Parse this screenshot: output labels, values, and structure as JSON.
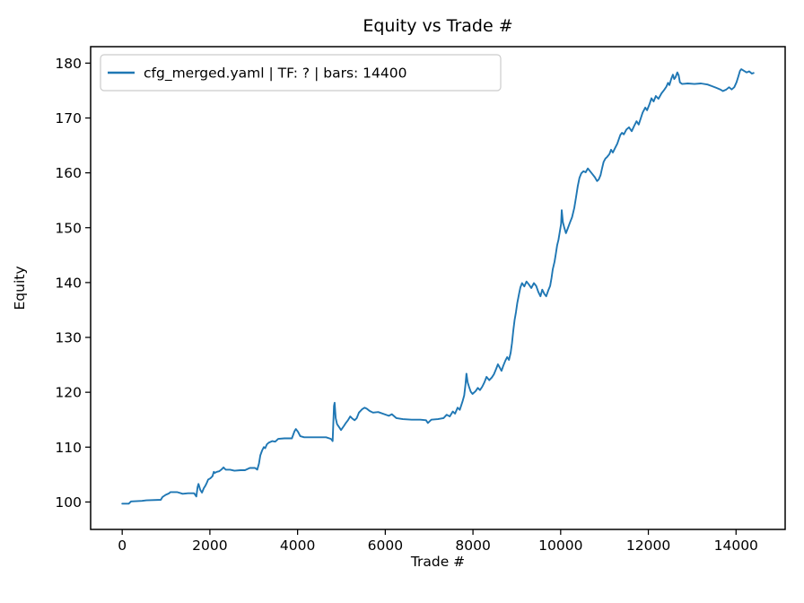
{
  "colors": {
    "line": "#1f77b4",
    "spine": "#000000",
    "legend_border": "#cccccc",
    "background": "#ffffff"
  },
  "chart_data": {
    "type": "line",
    "title": "Equity vs Trade #",
    "xlabel": "Trade #",
    "ylabel": "Equity",
    "grid": false,
    "legend": {
      "position": "upper left",
      "entries": [
        {
          "label": "cfg_merged.yaml | TF: ? | bars: 14400",
          "color": "#1f77b4"
        }
      ]
    },
    "xlim": [
      -720,
      15120
    ],
    "ylim": [
      95,
      183
    ],
    "x_ticks": [
      "0",
      "2000",
      "4000",
      "6000",
      "8000",
      "10000",
      "12000",
      "14000"
    ],
    "x_tick_values": [
      0,
      2000,
      4000,
      6000,
      8000,
      10000,
      12000,
      14000
    ],
    "y_ticks": [
      "100",
      "110",
      "120",
      "130",
      "140",
      "150",
      "160",
      "170",
      "180"
    ],
    "y_tick_values": [
      100,
      110,
      120,
      130,
      140,
      150,
      160,
      170,
      180
    ],
    "series": [
      {
        "name": "cfg_merged.yaml | TF: ? | bars: 14400",
        "color": "#1f77b4",
        "points": [
          [
            0,
            99.7
          ],
          [
            150,
            99.7
          ],
          [
            200,
            100.1
          ],
          [
            450,
            100.2
          ],
          [
            550,
            100.3
          ],
          [
            880,
            100.4
          ],
          [
            920,
            100.9
          ],
          [
            990,
            101.3
          ],
          [
            1070,
            101.6
          ],
          [
            1100,
            101.8
          ],
          [
            1250,
            101.8
          ],
          [
            1380,
            101.5
          ],
          [
            1500,
            101.6
          ],
          [
            1640,
            101.6
          ],
          [
            1690,
            101.0
          ],
          [
            1720,
            102.7
          ],
          [
            1740,
            103.3
          ],
          [
            1780,
            102.2
          ],
          [
            1820,
            101.7
          ],
          [
            1860,
            102.5
          ],
          [
            1900,
            103.0
          ],
          [
            1930,
            103.5
          ],
          [
            1960,
            104.1
          ],
          [
            2010,
            104.3
          ],
          [
            2060,
            104.7
          ],
          [
            2090,
            105.5
          ],
          [
            2110,
            105.3
          ],
          [
            2160,
            105.5
          ],
          [
            2210,
            105.6
          ],
          [
            2260,
            105.9
          ],
          [
            2310,
            106.3
          ],
          [
            2360,
            105.9
          ],
          [
            2460,
            105.9
          ],
          [
            2560,
            105.7
          ],
          [
            2700,
            105.8
          ],
          [
            2800,
            105.8
          ],
          [
            2910,
            106.2
          ],
          [
            3030,
            106.2
          ],
          [
            3080,
            105.9
          ],
          [
            3120,
            107.0
          ],
          [
            3150,
            108.5
          ],
          [
            3190,
            109.4
          ],
          [
            3230,
            110.0
          ],
          [
            3260,
            109.8
          ],
          [
            3300,
            110.5
          ],
          [
            3340,
            110.8
          ],
          [
            3420,
            111.1
          ],
          [
            3490,
            111.0
          ],
          [
            3560,
            111.5
          ],
          [
            3700,
            111.6
          ],
          [
            3870,
            111.6
          ],
          [
            3930,
            112.9
          ],
          [
            3960,
            113.3
          ],
          [
            4010,
            112.8
          ],
          [
            4060,
            112.0
          ],
          [
            4150,
            111.8
          ],
          [
            4400,
            111.8
          ],
          [
            4650,
            111.8
          ],
          [
            4760,
            111.5
          ],
          [
            4800,
            111.1
          ],
          [
            4830,
            117.5
          ],
          [
            4845,
            118.1
          ],
          [
            4870,
            115.3
          ],
          [
            4900,
            114.2
          ],
          [
            4950,
            113.6
          ],
          [
            4990,
            113.1
          ],
          [
            5060,
            113.9
          ],
          [
            5100,
            114.4
          ],
          [
            5150,
            114.9
          ],
          [
            5200,
            115.6
          ],
          [
            5250,
            115.2
          ],
          [
            5300,
            114.9
          ],
          [
            5350,
            115.3
          ],
          [
            5400,
            116.3
          ],
          [
            5470,
            116.9
          ],
          [
            5530,
            117.2
          ],
          [
            5580,
            117.0
          ],
          [
            5640,
            116.6
          ],
          [
            5720,
            116.3
          ],
          [
            5840,
            116.4
          ],
          [
            5980,
            116.0
          ],
          [
            6080,
            115.7
          ],
          [
            6150,
            116.0
          ],
          [
            6250,
            115.3
          ],
          [
            6400,
            115.1
          ],
          [
            6600,
            115.0
          ],
          [
            6800,
            115.0
          ],
          [
            6930,
            114.9
          ],
          [
            6970,
            114.4
          ],
          [
            7050,
            115.0
          ],
          [
            7200,
            115.1
          ],
          [
            7330,
            115.3
          ],
          [
            7400,
            115.9
          ],
          [
            7470,
            115.6
          ],
          [
            7540,
            116.5
          ],
          [
            7590,
            116.1
          ],
          [
            7650,
            117.2
          ],
          [
            7700,
            116.8
          ],
          [
            7760,
            118.3
          ],
          [
            7800,
            119.4
          ],
          [
            7830,
            121.5
          ],
          [
            7850,
            123.4
          ],
          [
            7880,
            121.8
          ],
          [
            7910,
            121.0
          ],
          [
            7950,
            120.1
          ],
          [
            7990,
            119.7
          ],
          [
            8060,
            120.2
          ],
          [
            8110,
            120.8
          ],
          [
            8160,
            120.4
          ],
          [
            8210,
            121.0
          ],
          [
            8260,
            121.8
          ],
          [
            8310,
            122.8
          ],
          [
            8370,
            122.2
          ],
          [
            8430,
            122.7
          ],
          [
            8480,
            123.3
          ],
          [
            8530,
            124.3
          ],
          [
            8570,
            125.1
          ],
          [
            8610,
            124.5
          ],
          [
            8650,
            123.9
          ],
          [
            8690,
            124.8
          ],
          [
            8740,
            125.8
          ],
          [
            8780,
            126.4
          ],
          [
            8820,
            125.9
          ],
          [
            8860,
            127.2
          ],
          [
            8890,
            129.0
          ],
          [
            8920,
            131.2
          ],
          [
            8950,
            133.2
          ],
          [
            8980,
            134.6
          ],
          [
            9010,
            136.2
          ],
          [
            9050,
            137.9
          ],
          [
            9080,
            139.1
          ],
          [
            9120,
            139.9
          ],
          [
            9170,
            139.3
          ],
          [
            9220,
            140.2
          ],
          [
            9280,
            139.6
          ],
          [
            9330,
            139.0
          ],
          [
            9390,
            139.9
          ],
          [
            9440,
            139.4
          ],
          [
            9490,
            138.3
          ],
          [
            9540,
            137.5
          ],
          [
            9580,
            138.7
          ],
          [
            9630,
            137.9
          ],
          [
            9670,
            137.5
          ],
          [
            9720,
            138.6
          ],
          [
            9760,
            139.4
          ],
          [
            9790,
            140.8
          ],
          [
            9820,
            142.4
          ],
          [
            9860,
            143.8
          ],
          [
            9890,
            145.2
          ],
          [
            9920,
            146.8
          ],
          [
            9950,
            147.8
          ],
          [
            9980,
            149.2
          ],
          [
            10010,
            150.7
          ],
          [
            10025,
            153.2
          ],
          [
            10050,
            151.0
          ],
          [
            10080,
            150.1
          ],
          [
            10120,
            149.0
          ],
          [
            10160,
            149.8
          ],
          [
            10210,
            150.9
          ],
          [
            10260,
            151.9
          ],
          [
            10310,
            153.6
          ],
          [
            10350,
            155.5
          ],
          [
            10390,
            157.6
          ],
          [
            10430,
            159.1
          ],
          [
            10470,
            159.9
          ],
          [
            10520,
            160.3
          ],
          [
            10570,
            160.1
          ],
          [
            10620,
            160.8
          ],
          [
            10670,
            160.3
          ],
          [
            10720,
            159.8
          ],
          [
            10780,
            159.2
          ],
          [
            10830,
            158.5
          ],
          [
            10870,
            158.8
          ],
          [
            10910,
            159.6
          ],
          [
            10940,
            160.7
          ],
          [
            10980,
            162.0
          ],
          [
            11020,
            162.6
          ],
          [
            11060,
            162.9
          ],
          [
            11110,
            163.4
          ],
          [
            11150,
            164.2
          ],
          [
            11190,
            163.7
          ],
          [
            11240,
            164.5
          ],
          [
            11290,
            165.3
          ],
          [
            11330,
            166.2
          ],
          [
            11360,
            166.9
          ],
          [
            11400,
            167.3
          ],
          [
            11440,
            167.0
          ],
          [
            11500,
            167.9
          ],
          [
            11560,
            168.3
          ],
          [
            11620,
            167.6
          ],
          [
            11680,
            168.6
          ],
          [
            11730,
            169.4
          ],
          [
            11780,
            168.8
          ],
          [
            11830,
            170.0
          ],
          [
            11870,
            171.0
          ],
          [
            11930,
            171.9
          ],
          [
            11970,
            171.4
          ],
          [
            12030,
            172.6
          ],
          [
            12070,
            173.6
          ],
          [
            12120,
            173.0
          ],
          [
            12170,
            174.0
          ],
          [
            12230,
            173.5
          ],
          [
            12300,
            174.5
          ],
          [
            12360,
            175.1
          ],
          [
            12410,
            175.7
          ],
          [
            12450,
            176.4
          ],
          [
            12480,
            176.0
          ],
          [
            12520,
            177.1
          ],
          [
            12560,
            177.9
          ],
          [
            12590,
            177.1
          ],
          [
            12620,
            177.4
          ],
          [
            12660,
            178.3
          ],
          [
            12690,
            177.8
          ],
          [
            12720,
            176.5
          ],
          [
            12770,
            176.2
          ],
          [
            12900,
            176.3
          ],
          [
            13050,
            176.2
          ],
          [
            13200,
            176.3
          ],
          [
            13350,
            176.1
          ],
          [
            13450,
            175.8
          ],
          [
            13550,
            175.5
          ],
          [
            13640,
            175.2
          ],
          [
            13700,
            174.9
          ],
          [
            13780,
            175.2
          ],
          [
            13840,
            175.6
          ],
          [
            13900,
            175.2
          ],
          [
            13960,
            175.6
          ],
          [
            14010,
            176.5
          ],
          [
            14050,
            177.5
          ],
          [
            14090,
            178.6
          ],
          [
            14120,
            178.9
          ],
          [
            14180,
            178.6
          ],
          [
            14240,
            178.3
          ],
          [
            14300,
            178.5
          ],
          [
            14360,
            178.1
          ],
          [
            14400,
            178.2
          ]
        ]
      }
    ]
  }
}
